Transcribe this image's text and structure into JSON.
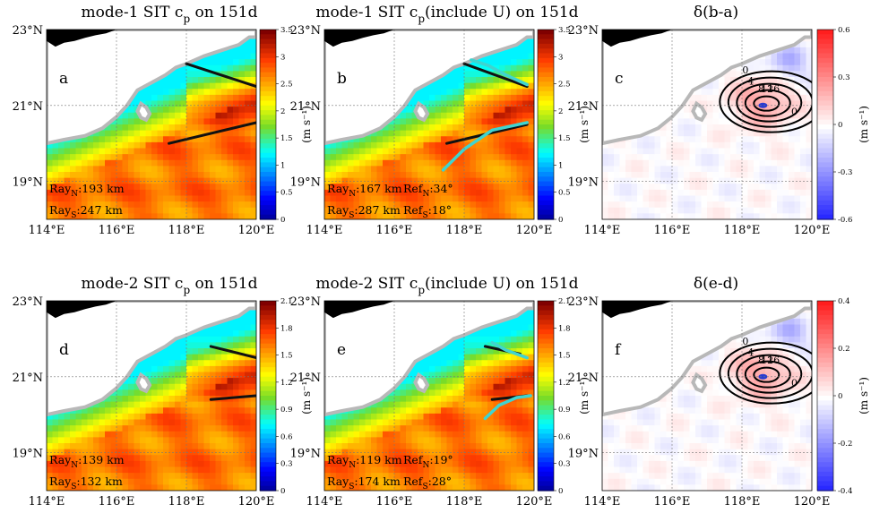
{
  "region": {
    "lon_range": [
      114,
      120
    ],
    "lat_range": [
      18,
      23
    ],
    "lon_ticks": [
      114,
      116,
      118,
      120
    ],
    "lat_ticks": [
      19,
      21,
      23
    ],
    "lon_tick_labels": [
      "114°E",
      "116°E",
      "118°E",
      "120°E"
    ],
    "lat_tick_labels": [
      "19°N",
      "21°N",
      "23°N"
    ]
  },
  "colors": {
    "land": "#000000",
    "coast_mask": "#b8b8b8",
    "ray_line": "#111111",
    "refraction_line": "#3fd4d0",
    "contour": "#000000"
  },
  "panels": [
    {
      "id": "a",
      "title": "mode-1 SIT c_p on 151d",
      "title_main": "mode-1 SIT c",
      "title_sub": "p",
      "title_tail": " on 151d",
      "kind": "speed",
      "colorbar": {
        "label": "(m s⁻¹)",
        "ticks": [
          "3.5",
          "3",
          "2.5",
          "2",
          "1.5",
          "1",
          "0.5",
          "0"
        ],
        "colormap": "jet",
        "range": [
          0,
          3.5
        ]
      },
      "rays": [
        {
          "name": "N",
          "lon": [
            118.0,
            120.0
          ],
          "lat": [
            22.1,
            21.5
          ]
        },
        {
          "name": "S",
          "lon": [
            117.5,
            120.0
          ],
          "lat": [
            20.0,
            20.55
          ]
        }
      ],
      "refraction_curves": [],
      "notes": [
        {
          "text": "Ray",
          "sub": "N",
          "tail": ":193 km"
        },
        {
          "text": "Ray",
          "sub": "S",
          "tail": ":247 km"
        }
      ],
      "ref_notes": []
    },
    {
      "id": "b",
      "title": "mode-1 SIT c_p (include U) on 151d",
      "title_main": "mode-1 SIT c",
      "title_sub": "p",
      "title_tail": "(include U) on 151d",
      "kind": "speed",
      "colorbar": {
        "label": "(m s⁻¹)",
        "ticks": [
          "3.5",
          "3",
          "2.5",
          "2",
          "1.5",
          "1",
          "0.5",
          "0"
        ],
        "colormap": "jet",
        "range": [
          0,
          3.5
        ]
      },
      "rays": [
        {
          "name": "N",
          "lon": [
            118.0,
            119.8
          ],
          "lat": [
            22.1,
            21.5
          ]
        },
        {
          "name": "S",
          "lon": [
            117.5,
            119.8
          ],
          "lat": [
            20.0,
            20.5
          ]
        }
      ],
      "refraction_curves": [
        {
          "name": "N",
          "lon": [
            118.2,
            118.7,
            119.2,
            119.8
          ],
          "lat": [
            22.2,
            22.05,
            21.8,
            21.55
          ]
        },
        {
          "name": "S",
          "lon": [
            117.4,
            118.0,
            118.8,
            119.8
          ],
          "lat": [
            19.3,
            19.85,
            20.35,
            20.55
          ]
        }
      ],
      "notes": [
        {
          "text": "Ray",
          "sub": "N",
          "tail": ":167 km"
        },
        {
          "text": "Ray",
          "sub": "S",
          "tail": ":287 km"
        }
      ],
      "ref_notes": [
        {
          "text": "Ref",
          "sub": "N",
          "tail": ":34°"
        },
        {
          "text": "Ref",
          "sub": "S",
          "tail": ":18°"
        }
      ]
    },
    {
      "id": "c",
      "title": "δ(b-a)",
      "kind": "diff",
      "colorbar": {
        "label": "(m s⁻¹)",
        "ticks": [
          "0.6",
          "0.3",
          "0",
          "-0.3",
          "-0.6"
        ],
        "colormap": "bwr",
        "range": [
          -0.6,
          0.6
        ]
      },
      "contour_labels": [
        "0",
        "4",
        "8",
        "12",
        "16",
        "0"
      ],
      "notes": [],
      "ref_notes": []
    },
    {
      "id": "d",
      "title": "mode-2 SIT c_p on 151d",
      "title_main": "mode-2 SIT c",
      "title_sub": "p",
      "title_tail": " on 151d",
      "kind": "speed",
      "colorbar": {
        "label": "(m s⁻¹)",
        "ticks": [
          "2.1",
          "1.8",
          "1.5",
          "1.2",
          "0.9",
          "0.6",
          "0.3",
          "0"
        ],
        "colormap": "jet",
        "range": [
          0,
          2.1
        ]
      },
      "rays": [
        {
          "name": "N",
          "lon": [
            118.7,
            120.0
          ],
          "lat": [
            21.8,
            21.5
          ]
        },
        {
          "name": "S",
          "lon": [
            118.7,
            120.0
          ],
          "lat": [
            20.4,
            20.5
          ]
        }
      ],
      "refraction_curves": [],
      "notes": [
        {
          "text": "Ray",
          "sub": "N",
          "tail": ":139 km"
        },
        {
          "text": "Ray",
          "sub": "S",
          "tail": ":132 km"
        }
      ],
      "ref_notes": []
    },
    {
      "id": "e",
      "title": "mode-2 SIT c_p (include U) on 151d",
      "title_main": "mode-2 SIT c",
      "title_sub": "p",
      "title_tail": "(include U) on 151d",
      "kind": "speed",
      "colorbar": {
        "label": "(m s⁻¹)",
        "ticks": [
          "2.1",
          "1.8",
          "1.5",
          "1.2",
          "0.9",
          "0.6",
          "0.3",
          "0"
        ],
        "colormap": "jet",
        "range": [
          0,
          2.1
        ]
      },
      "rays": [
        {
          "name": "N",
          "lon": [
            118.6,
            119.6
          ],
          "lat": [
            21.8,
            21.6
          ]
        },
        {
          "name": "S",
          "lon": [
            118.8,
            119.8
          ],
          "lat": [
            20.4,
            20.5
          ]
        }
      ],
      "refraction_curves": [
        {
          "name": "N",
          "lon": [
            118.8,
            119.2,
            119.8
          ],
          "lat": [
            21.9,
            21.7,
            21.5
          ]
        },
        {
          "name": "S",
          "lon": [
            118.6,
            119.0,
            119.5,
            119.9
          ],
          "lat": [
            19.9,
            20.25,
            20.45,
            20.5
          ]
        }
      ],
      "notes": [
        {
          "text": "Ray",
          "sub": "N",
          "tail": ":119 km"
        },
        {
          "text": "Ray",
          "sub": "S",
          "tail": ":174 km"
        }
      ],
      "ref_notes": [
        {
          "text": "Ref",
          "sub": "N",
          "tail": ":19°"
        },
        {
          "text": "Ref",
          "sub": "S",
          "tail": ":28°"
        }
      ]
    },
    {
      "id": "f",
      "title": "δ(e-d)",
      "kind": "diff",
      "colorbar": {
        "label": "(m s⁻¹)",
        "ticks": [
          "0.4",
          "0.2",
          "0",
          "-0.2",
          "-0.4"
        ],
        "colormap": "bwr",
        "range": [
          -0.4,
          0.4
        ]
      },
      "contour_labels": [
        "0",
        "4",
        "8",
        "12",
        "16",
        "0"
      ],
      "notes": [],
      "ref_notes": []
    }
  ]
}
